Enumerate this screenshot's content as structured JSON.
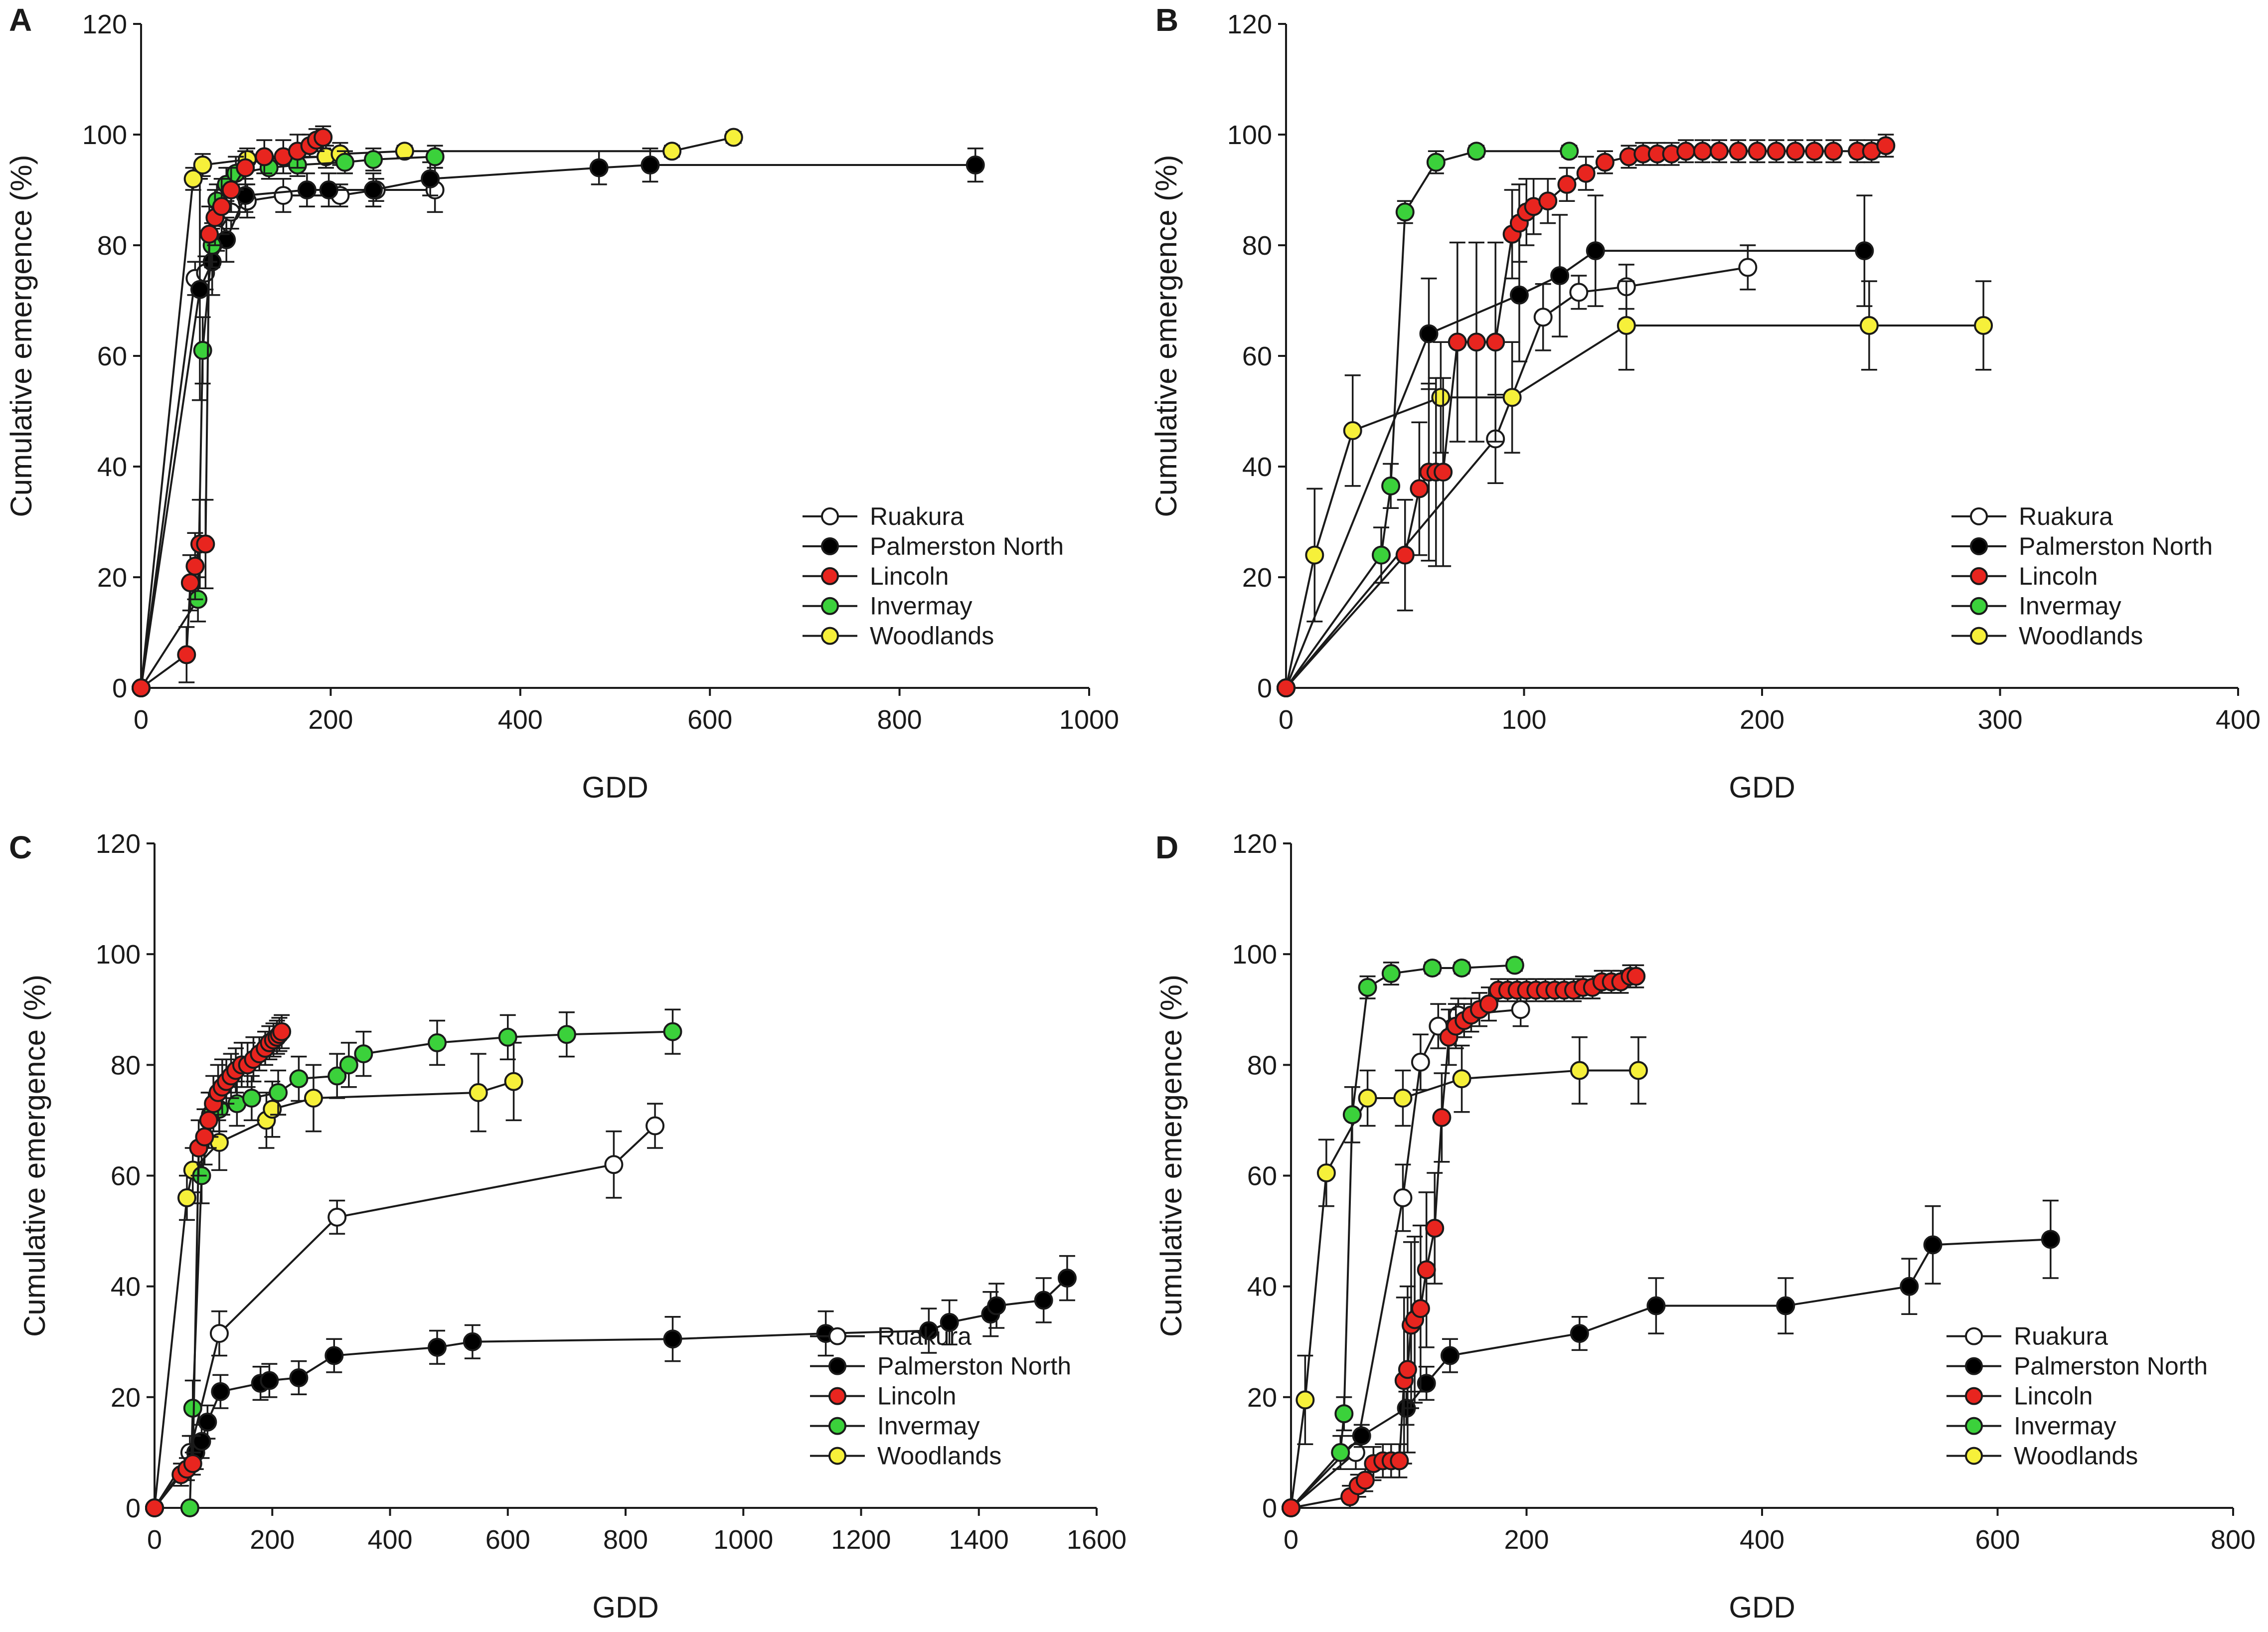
{
  "figure": {
    "description_free": true
  },
  "colors": {
    "Ruakura": "#ffffff",
    "Palmerston North": "#000000",
    "Lincoln": "#e8251f",
    "Invermay": "#3bd13b",
    "Woodlands": "#f6f03a"
  },
  "chart_data": [
    {
      "panel": "A",
      "type": "scatter",
      "xlabel": "GDD",
      "ylabel": "Cumulative emergence (%)",
      "xlim": [
        0,
        1000
      ],
      "ylim": [
        0,
        120
      ],
      "xticks": [
        0,
        200,
        400,
        600,
        800,
        1000
      ],
      "yticks": [
        0,
        20,
        40,
        60,
        80,
        100,
        120
      ],
      "legend": "bottom-right",
      "series": [
        {
          "name": "Ruakura",
          "x": [
            0,
            57,
            68,
            80,
            95,
            112,
            150,
            210,
            248,
            310
          ],
          "y": [
            0,
            74,
            75,
            82,
            86,
            88,
            89,
            89,
            90,
            90
          ],
          "err": [
            0,
            3,
            3,
            3,
            3,
            3,
            3,
            2,
            2,
            4
          ]
        },
        {
          "name": "Palmerston North",
          "x": [
            0,
            62,
            75,
            90,
            110,
            175,
            198,
            245,
            305,
            483,
            537,
            880
          ],
          "y": [
            0,
            72,
            77,
            81,
            89,
            90,
            90,
            90,
            92,
            94,
            94.5,
            94.5
          ],
          "err": [
            0,
            20,
            6,
            4,
            3,
            3,
            3,
            3,
            3,
            3,
            3,
            3
          ]
        },
        {
          "name": "Lincoln",
          "x": [
            0,
            48,
            52,
            57,
            62,
            68,
            72,
            78,
            85,
            95,
            110,
            130,
            150,
            165,
            178,
            185,
            192
          ],
          "y": [
            0,
            6,
            19,
            22,
            26,
            26,
            82,
            85,
            87,
            90,
            94,
            96,
            96,
            97,
            98,
            99,
            99.5
          ],
          "err": [
            0,
            5,
            5,
            6,
            8,
            8,
            5,
            5,
            5,
            4,
            3,
            3,
            3,
            3,
            2,
            2,
            2
          ]
        },
        {
          "name": "Invermay",
          "x": [
            0,
            60,
            65,
            75,
            80,
            90,
            100,
            135,
            165,
            215,
            245,
            310
          ],
          "y": [
            0,
            16,
            61,
            80,
            88,
            91,
            93,
            94,
            94.5,
            95,
            95.5,
            96
          ],
          "err": [
            0,
            4,
            6,
            4,
            3,
            3,
            3,
            2,
            2,
            2,
            2,
            2
          ]
        },
        {
          "name": "Woodlands",
          "x": [
            0,
            55,
            65,
            112,
            195,
            210,
            278,
            560,
            625
          ],
          "y": [
            0,
            92,
            94.5,
            95.5,
            96,
            96.5,
            97,
            97,
            99.5
          ],
          "err": [
            0,
            2,
            2,
            2,
            2,
            2,
            1,
            1,
            1
          ]
        }
      ]
    },
    {
      "panel": "B",
      "type": "scatter",
      "xlabel": "GDD",
      "ylabel": "Cumulative emergence (%)",
      "xlim": [
        0,
        400
      ],
      "ylim": [
        0,
        120
      ],
      "xticks": [
        0,
        100,
        200,
        300,
        400
      ],
      "yticks": [
        0,
        20,
        40,
        60,
        80,
        100,
        120
      ],
      "legend": "bottom-right",
      "series": [
        {
          "name": "Ruakura",
          "x": [
            0,
            88,
            108,
            123,
            143,
            194
          ],
          "y": [
            0,
            45,
            67,
            71.5,
            72.5,
            76
          ],
          "err": [
            0,
            8,
            6,
            3,
            4,
            4
          ]
        },
        {
          "name": "Palmerston North",
          "x": [
            0,
            60,
            98,
            115,
            130,
            243
          ],
          "y": [
            0,
            64,
            71,
            74.5,
            79,
            79
          ],
          "err": [
            0,
            10,
            12,
            11,
            10,
            10
          ]
        },
        {
          "name": "Lincoln",
          "x": [
            0,
            50,
            56,
            60,
            63,
            66,
            72,
            80,
            88,
            95,
            98,
            101,
            104,
            110,
            118,
            126,
            134,
            144,
            150,
            156,
            162,
            168,
            175,
            182,
            190,
            198,
            206,
            214,
            222,
            230,
            240,
            246,
            252
          ],
          "y": [
            0,
            24,
            36,
            39,
            39,
            39,
            62.5,
            62.5,
            62.5,
            82,
            84,
            86,
            87,
            88,
            91,
            93,
            95,
            96,
            96.5,
            96.5,
            96.5,
            97,
            97,
            97,
            97,
            97,
            97,
            97,
            97,
            97,
            97,
            97,
            98
          ],
          "err": [
            0,
            10,
            12,
            16,
            17,
            17,
            18,
            18,
            18,
            8,
            7,
            6,
            5,
            4,
            3,
            3,
            2,
            2,
            2,
            2,
            2,
            2,
            2,
            2,
            2,
            2,
            2,
            2,
            2,
            2,
            2,
            2,
            2
          ]
        },
        {
          "name": "Invermay",
          "x": [
            0,
            40,
            44,
            50,
            63,
            80,
            119
          ],
          "y": [
            0,
            24,
            36.5,
            86,
            95,
            97,
            97
          ],
          "err": [
            0,
            5,
            4,
            2,
            2,
            1,
            1
          ]
        },
        {
          "name": "Woodlands",
          "x": [
            0,
            12,
            28,
            65,
            95,
            143,
            245,
            293
          ],
          "y": [
            0,
            24,
            46.5,
            52.5,
            52.5,
            65.5,
            65.5,
            65.5
          ],
          "err": [
            0,
            12,
            10,
            10,
            10,
            8,
            8,
            8
          ]
        }
      ]
    },
    {
      "panel": "C",
      "type": "scatter",
      "xlabel": "GDD",
      "ylabel": "Cumulative emergence (%)",
      "xlim": [
        0,
        1600
      ],
      "ylim": [
        0,
        120
      ],
      "xticks": [
        0,
        200,
        400,
        600,
        800,
        1000,
        1200,
        1400,
        1600
      ],
      "yticks": [
        0,
        20,
        40,
        60,
        80,
        100,
        120
      ],
      "legend": "bottom-right",
      "series": [
        {
          "name": "Ruakura",
          "x": [
            0,
            60,
            110,
            310,
            780,
            850
          ],
          "y": [
            0,
            10,
            31.5,
            52.5,
            62,
            69
          ],
          "err": [
            0,
            3,
            4,
            3,
            6,
            4
          ]
        },
        {
          "name": "Palmerston North",
          "x": [
            0,
            70,
            80,
            90,
            112,
            180,
            195,
            245,
            305,
            480,
            540,
            880,
            1140,
            1315,
            1350,
            1420,
            1430,
            1510,
            1550
          ],
          "y": [
            0,
            10,
            12,
            15.5,
            21,
            22.5,
            23,
            23.5,
            27.5,
            29,
            30,
            30.5,
            31.5,
            32,
            33.5,
            35,
            36.5,
            37.5,
            41.5
          ],
          "err": [
            0,
            3,
            3,
            3,
            3,
            3,
            3,
            3,
            3,
            3,
            3,
            4,
            4,
            4,
            4,
            4,
            4,
            4,
            4
          ]
        },
        {
          "name": "Lincoln",
          "x": [
            0,
            45,
            55,
            65,
            75,
            85,
            92,
            100,
            108,
            115,
            122,
            130,
            138,
            148,
            158,
            168,
            178,
            188,
            195,
            202,
            208,
            212,
            216
          ],
          "y": [
            0,
            6,
            7,
            8,
            65,
            67,
            70,
            73,
            75,
            76,
            77,
            78,
            79,
            80,
            80,
            81,
            82,
            83,
            84,
            84.5,
            85,
            85.5,
            86
          ],
          "err": [
            0,
            2,
            2,
            2,
            5,
            5,
            5,
            5,
            5,
            5,
            4,
            4,
            4,
            4,
            4,
            4,
            3,
            3,
            3,
            3,
            3,
            3,
            3
          ]
        },
        {
          "name": "Invermay",
          "x": [
            0,
            60,
            65,
            80,
            95,
            110,
            140,
            165,
            210,
            245,
            310,
            330,
            355,
            480,
            600,
            700,
            880
          ],
          "y": [
            0,
            0,
            18,
            60,
            71,
            72,
            73,
            74,
            75,
            77.5,
            78,
            80,
            82,
            84,
            85,
            85.5,
            86
          ],
          "err": [
            0,
            0,
            5,
            5,
            4,
            4,
            4,
            4,
            4,
            4,
            4,
            4,
            4,
            4,
            4,
            4,
            4
          ]
        },
        {
          "name": "Woodlands",
          "x": [
            0,
            55,
            65,
            110,
            190,
            200,
            270,
            550,
            610
          ],
          "y": [
            0,
            56,
            61,
            66,
            70,
            72,
            74,
            75,
            77
          ],
          "err": [
            0,
            4,
            4,
            5,
            5,
            5,
            6,
            7,
            7
          ]
        }
      ]
    },
    {
      "panel": "D",
      "type": "scatter",
      "xlabel": "GDD",
      "ylabel": "Cumulative emergence (%)",
      "xlim": [
        0,
        800
      ],
      "ylim": [
        0,
        120
      ],
      "xticks": [
        0,
        200,
        400,
        600,
        800
      ],
      "yticks": [
        0,
        20,
        40,
        60,
        80,
        100,
        120
      ],
      "legend": "bottom-right",
      "series": [
        {
          "name": "Ruakura",
          "x": [
            0,
            55,
            95,
            110,
            125,
            142,
            195
          ],
          "y": [
            0,
            10,
            56,
            80.5,
            87,
            89,
            90
          ],
          "err": [
            0,
            3,
            6,
            5,
            4,
            3,
            3
          ]
        },
        {
          "name": "Palmerston North",
          "x": [
            0,
            60,
            98,
            115,
            135,
            245,
            310,
            420,
            525,
            545,
            645
          ],
          "y": [
            0,
            13,
            18,
            22.5,
            27.5,
            31.5,
            36.5,
            36.5,
            40,
            47.5,
            48.5
          ],
          "err": [
            0,
            2,
            3,
            3,
            3,
            3,
            5,
            5,
            5,
            7,
            7
          ]
        },
        {
          "name": "Lincoln",
          "x": [
            0,
            50,
            57,
            63,
            70,
            78,
            85,
            92,
            96,
            99,
            102,
            105,
            110,
            115,
            122,
            128,
            134,
            140,
            147,
            153,
            160,
            168,
            176,
            184,
            192,
            200,
            208,
            216,
            224,
            232,
            240,
            248,
            256,
            264,
            272,
            280,
            288,
            293
          ],
          "y": [
            0,
            2,
            4,
            5,
            8,
            8.5,
            8.5,
            8.5,
            23,
            25,
            33,
            34,
            36,
            43,
            50.5,
            70.5,
            85,
            87,
            88,
            89,
            90,
            91,
            93.5,
            93.5,
            93.5,
            93.5,
            93.5,
            93.5,
            93.5,
            93.5,
            93.5,
            94,
            94,
            95,
            95,
            95,
            96,
            96
          ],
          "err": [
            0,
            2,
            2,
            2,
            3,
            3,
            3,
            3,
            15,
            15,
            15,
            15,
            15,
            14,
            10,
            8,
            5,
            4,
            3,
            3,
            3,
            3,
            2,
            2,
            2,
            2,
            2,
            2,
            2,
            2,
            2,
            2,
            2,
            2,
            2,
            2,
            2,
            2
          ]
        },
        {
          "name": "Invermay",
          "x": [
            0,
            42,
            45,
            52,
            65,
            85,
            120,
            145,
            190
          ],
          "y": [
            0,
            10,
            17,
            71,
            94,
            96.5,
            97.5,
            97.5,
            98
          ],
          "err": [
            0,
            3,
            3,
            5,
            2,
            2,
            1,
            1,
            1
          ]
        },
        {
          "name": "Woodlands",
          "x": [
            0,
            12,
            30,
            65,
            95,
            145,
            245,
            295
          ],
          "y": [
            0,
            19.5,
            60.5,
            74,
            74,
            77.5,
            79,
            79
          ],
          "err": [
            0,
            8,
            6,
            5,
            5,
            6,
            6,
            6
          ]
        }
      ]
    }
  ]
}
